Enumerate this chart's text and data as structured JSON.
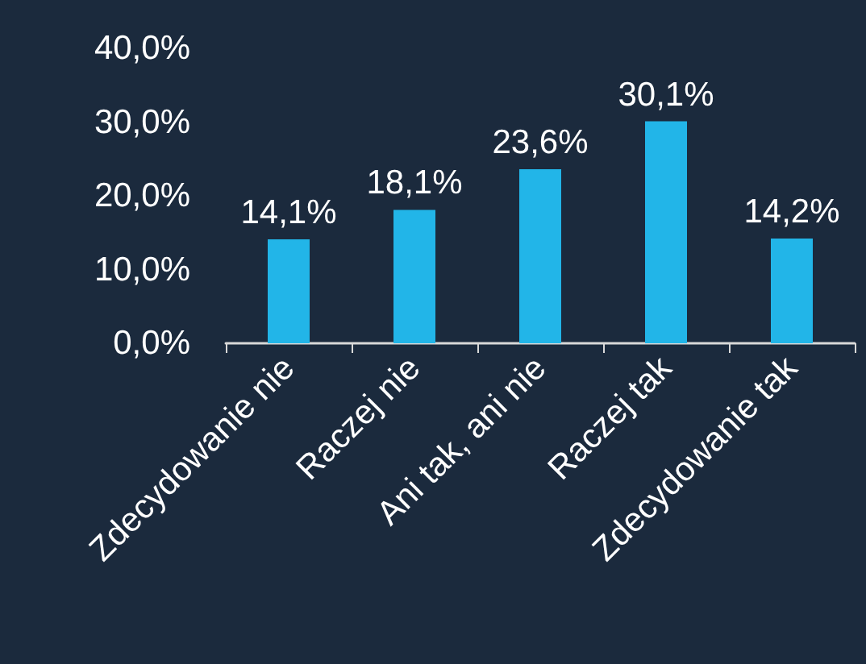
{
  "chart_data": {
    "type": "bar",
    "categories": [
      "Zdecydowanie nie",
      "Raczej nie",
      "Ani tak, ani nie",
      "Raczej tak",
      "Zdecydowanie tak"
    ],
    "values": [
      14.1,
      18.1,
      23.6,
      30.1,
      14.2
    ],
    "value_labels": [
      "14,1%",
      "18,1%",
      "23,6%",
      "30,1%",
      "14,2%"
    ],
    "color": "#22b5e8",
    "ylim": [
      0,
      40
    ],
    "yticks": [
      {
        "value": 0,
        "label": "0,0%"
      },
      {
        "value": 10,
        "label": "10,0%"
      },
      {
        "value": 20,
        "label": "20,0%"
      },
      {
        "value": 30,
        "label": "30,0%"
      },
      {
        "value": 40,
        "label": "40,0%"
      }
    ],
    "grid": false
  }
}
